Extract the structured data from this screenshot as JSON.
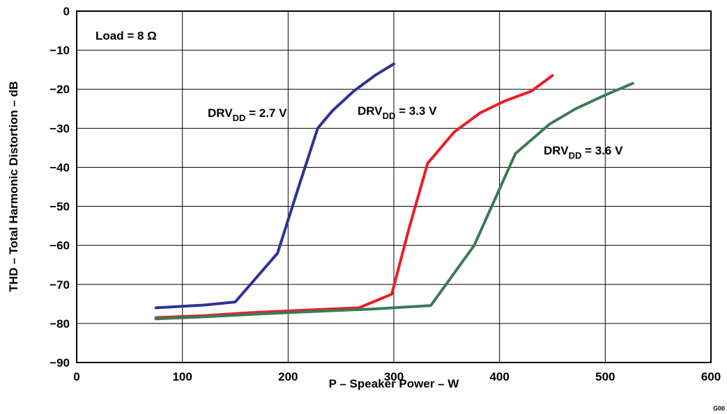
{
  "chart_data": {
    "type": "line",
    "xlabel": "P – Speaker Power – W",
    "ylabel": "THD – Total Harmonic Distortion  – dB",
    "xlim": [
      0,
      600
    ],
    "ylim": [
      -90,
      0
    ],
    "x_ticks": [
      "0",
      "100",
      "200",
      "300",
      "400",
      "500",
      "600"
    ],
    "y_ticks": [
      "0",
      "−10",
      "−20",
      "−30",
      "−40",
      "−50",
      "−60",
      "−70",
      "−80",
      "−90"
    ],
    "grid": true,
    "annotation": "Load = 8 Ω",
    "corner_label": "G00",
    "series": [
      {
        "name_main": "DRV",
        "name_sub": "DD",
        "name_tail": " = 2.7 V",
        "color": "#2e3192",
        "x": [
          75,
          120,
          150,
          190,
          210,
          228,
          242,
          262,
          282,
          300
        ],
        "y": [
          -76,
          -75.3,
          -74.5,
          -62,
          -45,
          -30,
          -25.5,
          -20.5,
          -16.5,
          -13.5
        ]
      },
      {
        "name_main": "DRV",
        "name_sub": "DD",
        "name_tail": " = 3.3 V",
        "color": "#ed1c24",
        "x": [
          75,
          120,
          160,
          200,
          267,
          298,
          315,
          332,
          357,
          382,
          405,
          430,
          450
        ],
        "y": [
          -78.5,
          -78,
          -77.3,
          -76.8,
          -76,
          -72.5,
          -55,
          -39,
          -31,
          -26,
          -23,
          -20.5,
          -16.5
        ]
      },
      {
        "name_main": "DRV",
        "name_sub": "DD",
        "name_tail": " = 3.6 V",
        "color": "#3a7a56",
        "x": [
          75,
          120,
          200,
          280,
          335,
          376,
          415,
          447,
          472,
          500,
          526
        ],
        "y": [
          -78.8,
          -78.3,
          -77.2,
          -76.3,
          -75.4,
          -60,
          -36.5,
          -29,
          -25,
          -21.5,
          -18.5
        ]
      }
    ]
  }
}
